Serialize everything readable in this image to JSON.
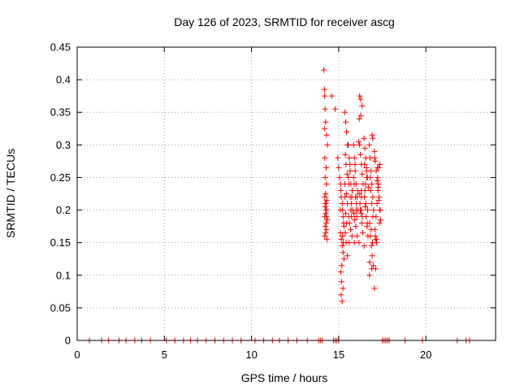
{
  "chart_data": {
    "type": "scatter",
    "title": "Day 126 of 2023, SRMTID for receiver ascg",
    "xlabel": "GPS time / hours",
    "ylabel": "SRMTID / TECUs",
    "xlim": [
      0,
      24
    ],
    "ylim": [
      0,
      0.45
    ],
    "xticks": [
      0,
      5,
      10,
      15,
      20
    ],
    "xtick_labels": [
      "0",
      "5",
      "10",
      "15",
      "20"
    ],
    "yticks": [
      0,
      0.05,
      0.1,
      0.15,
      0.2,
      0.25,
      0.3,
      0.35,
      0.4,
      0.45
    ],
    "ytick_labels": [
      "0",
      "0.05",
      "0.1",
      "0.15",
      "0.2",
      "0.25",
      "0.3",
      "0.35",
      "0.4",
      "0.45"
    ],
    "grid": true,
    "marker": "+",
    "color": "#ff0000",
    "series": [
      {
        "name": "SRMTID",
        "x": [
          0.7,
          1.4,
          1.8,
          2.4,
          2.8,
          3.3,
          3.7,
          4.2,
          5.1,
          5.6,
          6.1,
          6.5,
          6.9,
          7.4,
          7.9,
          8.4,
          8.9,
          9.4,
          10.2,
          10.7,
          11.2,
          11.6,
          12.1,
          12.6,
          13.2,
          13.85,
          13.95,
          14.05,
          14.7,
          14.8,
          14.9,
          15.0,
          17.5,
          17.6,
          17.7,
          17.8,
          17.9,
          18.8,
          19.8,
          21.8,
          22.3,
          22.5,
          14.15,
          14.18,
          14.2,
          14.22,
          14.25,
          14.2,
          14.3,
          14.35,
          14.2,
          14.28,
          14.22,
          14.3,
          14.25,
          14.2,
          14.32,
          14.27,
          14.22,
          14.3,
          14.25,
          14.2,
          14.35,
          14.28,
          14.22,
          14.3,
          14.25,
          14.2,
          14.32,
          14.27,
          14.22,
          14.3,
          14.6,
          14.8,
          14.95,
          15.0,
          15.05,
          15.1,
          15.12,
          15.15,
          15.2,
          15.22,
          15.25,
          15.28,
          15.1,
          15.15,
          15.2,
          15.25,
          15.3,
          15.18,
          15.12,
          15.22,
          15.08,
          15.3,
          15.16,
          15.24,
          15.14,
          15.2,
          15.26,
          15.1,
          15.35,
          15.4,
          15.45,
          15.5,
          15.38,
          15.42,
          15.48,
          15.36,
          15.44,
          15.5,
          15.4,
          15.46,
          15.38,
          15.42,
          15.5,
          15.36,
          15.55,
          15.6,
          15.65,
          15.7,
          15.75,
          15.8,
          15.58,
          15.62,
          15.68,
          15.72,
          15.78,
          15.56,
          15.64,
          15.7,
          15.76,
          15.6,
          15.66,
          15.74,
          15.58,
          15.7,
          15.85,
          15.9,
          15.95,
          16.0,
          16.05,
          16.1,
          15.88,
          15.92,
          15.98,
          16.02,
          16.08,
          15.86,
          15.94,
          16.0,
          16.06,
          15.9,
          15.96,
          16.04,
          15.88,
          16.0,
          16.15,
          16.2,
          16.25,
          16.3,
          16.35,
          16.4,
          16.18,
          16.22,
          16.28,
          16.32,
          16.38,
          16.16,
          16.24,
          16.3,
          16.36,
          16.2,
          16.26,
          16.34,
          16.18,
          16.3,
          16.27,
          16.3,
          16.45,
          16.5,
          16.55,
          16.6,
          16.65,
          16.7,
          16.48,
          16.52,
          16.58,
          16.62,
          16.68,
          16.46,
          16.54,
          16.6,
          16.66,
          16.5,
          16.56,
          16.64,
          16.48,
          16.6,
          16.75,
          16.8,
          16.85,
          16.9,
          16.95,
          17.0,
          16.78,
          16.82,
          16.88,
          16.92,
          16.98,
          16.76,
          16.84,
          16.9,
          16.96,
          16.8,
          16.86,
          16.94,
          16.78,
          16.9,
          16.92,
          16.95,
          17.05,
          17.1,
          17.15,
          17.2,
          17.25,
          17.3,
          17.35,
          17.4,
          17.08,
          17.12,
          17.18,
          17.22,
          17.28,
          17.32,
          17.38,
          17.06,
          17.14,
          17.2,
          17.26,
          17.34,
          17.1,
          17.16,
          17.24,
          17.3,
          17.36,
          17.05,
          17.12
        ],
        "y": [
          0,
          0,
          0,
          0,
          0,
          0,
          0,
          0,
          0,
          0,
          0,
          0,
          0,
          0,
          0,
          0,
          0,
          0,
          0,
          0,
          0,
          0,
          0,
          0,
          0,
          0,
          0,
          0,
          0,
          0,
          0,
          0,
          0,
          0,
          0,
          0,
          0,
          0,
          0,
          0,
          0,
          0,
          0.415,
          0.385,
          0.375,
          0.355,
          0.335,
          0.325,
          0.315,
          0.3,
          0.28,
          0.265,
          0.25,
          0.24,
          0.225,
          0.22,
          0.215,
          0.21,
          0.205,
          0.2,
          0.195,
          0.19,
          0.185,
          0.18,
          0.175,
          0.17,
          0.165,
          0.16,
          0.155,
          0.2,
          0.21,
          0.19,
          0.375,
          0.355,
          0.28,
          0.265,
          0.25,
          0.24,
          0.23,
          0.22,
          0.21,
          0.2,
          0.19,
          0.18,
          0.165,
          0.155,
          0.145,
          0.135,
          0.125,
          0.115,
          0.105,
          0.16,
          0.2,
          0.175,
          0.09,
          0.08,
          0.07,
          0.06,
          0.15,
          0.24,
          0.35,
          0.335,
          0.32,
          0.3,
          0.285,
          0.27,
          0.255,
          0.24,
          0.225,
          0.21,
          0.195,
          0.18,
          0.165,
          0.15,
          0.13,
          0.22,
          0.3,
          0.28,
          0.26,
          0.24,
          0.22,
          0.2,
          0.19,
          0.18,
          0.17,
          0.21,
          0.23,
          0.25,
          0.27,
          0.2,
          0.16,
          0.15,
          0.22,
          0.19,
          0.24,
          0.2,
          0.3,
          0.28,
          0.26,
          0.24,
          0.22,
          0.2,
          0.195,
          0.185,
          0.175,
          0.21,
          0.23,
          0.25,
          0.27,
          0.2,
          0.16,
          0.15,
          0.22,
          0.19,
          0.24,
          0.2,
          0.305,
          0.3,
          0.285,
          0.27,
          0.255,
          0.24,
          0.225,
          0.21,
          0.195,
          0.18,
          0.165,
          0.15,
          0.2,
          0.22,
          0.19,
          0.375,
          0.37,
          0.36,
          0.34,
          0.23,
          0.345,
          0.2,
          0.31,
          0.295,
          0.28,
          0.265,
          0.25,
          0.235,
          0.22,
          0.205,
          0.19,
          0.175,
          0.16,
          0.145,
          0.24,
          0.26,
          0.2,
          0.23,
          0.21,
          0.18,
          0.27,
          0.25,
          0.3,
          0.28,
          0.26,
          0.24,
          0.22,
          0.2,
          0.18,
          0.16,
          0.145,
          0.13,
          0.115,
          0.1,
          0.23,
          0.21,
          0.19,
          0.25,
          0.17,
          0.15,
          0.12,
          0.11,
          0.315,
          0.31,
          0.29,
          0.275,
          0.26,
          0.245,
          0.23,
          0.215,
          0.2,
          0.185,
          0.17,
          0.155,
          0.15,
          0.265,
          0.24,
          0.22,
          0.2,
          0.28,
          0.19,
          0.21,
          0.235,
          0.18,
          0.16,
          0.155,
          0.25,
          0.265,
          0.27,
          0.08,
          0.11
        ]
      }
    ]
  }
}
